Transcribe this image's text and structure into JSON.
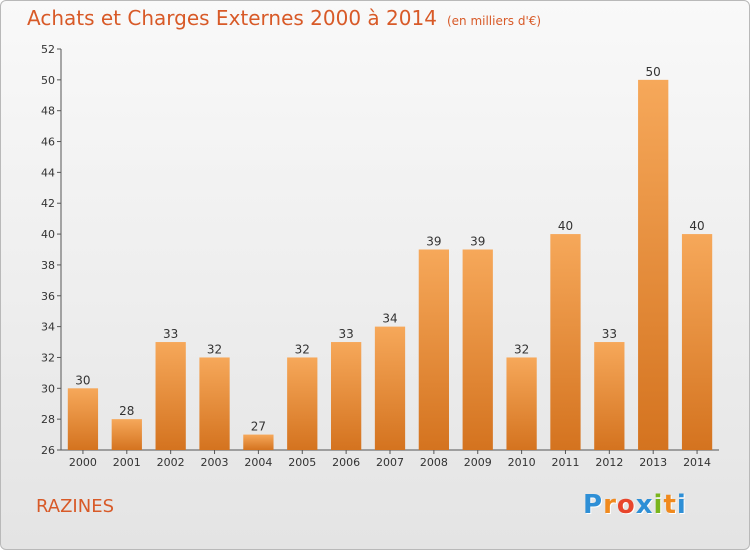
{
  "header": {
    "title": "Achats et Charges Externes 2000 à 2014",
    "unit": "(en milliers d'€)"
  },
  "footer": {
    "commune": "RAZINES",
    "logo_letters": [
      "P",
      "r",
      "o",
      "x",
      "i",
      "t",
      "i"
    ],
    "logo_colors": [
      "#2e8fd6",
      "#f08a1e",
      "#e8452c",
      "#2e8fd6",
      "#7ab51d",
      "#f08a1e",
      "#2e8fd6"
    ]
  },
  "colors": {
    "bar_light": "#f6a85a",
    "bar_dark": "#d4731f",
    "accent": "#d85a28"
  },
  "chart_data": {
    "type": "bar",
    "categories": [
      "2000",
      "2001",
      "2002",
      "2003",
      "2004",
      "2005",
      "2006",
      "2007",
      "2008",
      "2009",
      "2010",
      "2011",
      "2012",
      "2013",
      "2014"
    ],
    "values": [
      30,
      28,
      33,
      32,
      27,
      32,
      33,
      34,
      39,
      39,
      32,
      40,
      33,
      50,
      40
    ],
    "yticks": [
      26,
      28,
      30,
      32,
      34,
      36,
      38,
      40,
      42,
      44,
      46,
      48,
      50,
      52
    ],
    "ylim": [
      26,
      52
    ],
    "grid": false,
    "data_labels": true
  }
}
